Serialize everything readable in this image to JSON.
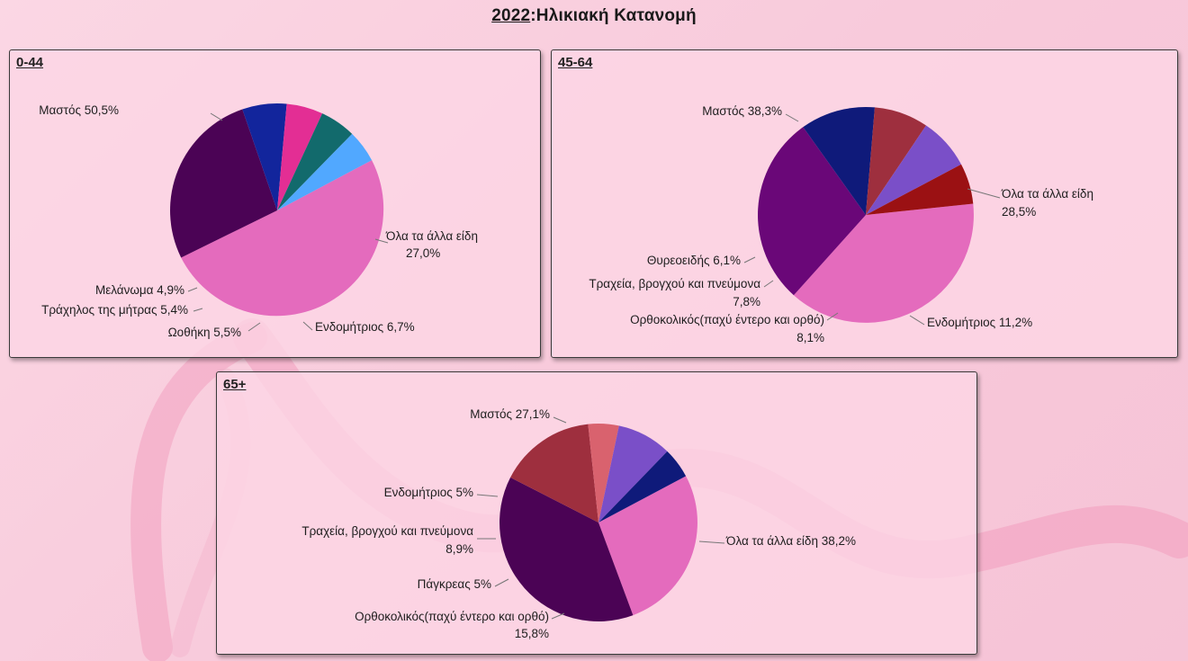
{
  "title": {
    "year": "2022",
    "rest": ":Ηλικιακή Κατανομή"
  },
  "chart_data": [
    {
      "type": "pie",
      "title": "0-44",
      "slices": [
        {
          "label": "Μαστός",
          "value": 50.5,
          "value_text": "50,5%",
          "color": "#e46bbd"
        },
        {
          "label": "Όλα τα άλλα είδη",
          "value": 27.0,
          "value_text": "27,0%",
          "color": "#4b0355"
        },
        {
          "label": "Ενδομήτριος",
          "value": 6.7,
          "value_text": "6,7%",
          "color": "#12259c"
        },
        {
          "label": "Ωοθήκη",
          "value": 5.5,
          "value_text": "5,5%",
          "color": "#e32e94"
        },
        {
          "label": "Τράχηλος της μήτρας",
          "value": 5.4,
          "value_text": "5,4%",
          "color": "#126a6c"
        },
        {
          "label": "Μελάνωμα",
          "value": 4.9,
          "value_text": "4,9%",
          "color": "#51a8ff"
        }
      ]
    },
    {
      "type": "pie",
      "title": "45-64",
      "slices": [
        {
          "label": "Μαστός",
          "value": 38.3,
          "value_text": "38,3%",
          "color": "#e46bbd"
        },
        {
          "label": "Όλα τα άλλα είδη",
          "value": 28.5,
          "value_text": "28,5%",
          "color": "#6a0778"
        },
        {
          "label": "Ενδομήτριος",
          "value": 11.2,
          "value_text": "11,2%",
          "color": "#0f1a7a"
        },
        {
          "label": "Ορθοκολικός(παχύ έντερο και ορθό)",
          "value": 8.1,
          "value_text": "8,1%",
          "color": "#9e2f3e"
        },
        {
          "label": "Τραχεία, βρογχού και πνεύμονα",
          "value": 7.8,
          "value_text": "7,8%",
          "color": "#7a4fc8"
        },
        {
          "label": "Θυρεοειδής",
          "value": 6.1,
          "value_text": "6,1%",
          "color": "#9b1113"
        }
      ]
    },
    {
      "type": "pie",
      "title": "65+",
      "slices": [
        {
          "label": "Μαστός",
          "value": 27.1,
          "value_text": "27,1%",
          "color": "#e46bbd"
        },
        {
          "label": "Όλα τα άλλα είδη",
          "value": 38.2,
          "value_text": "38,2%",
          "color": "#4b0355"
        },
        {
          "label": "Ορθοκολικός(παχύ έντερο και ορθό)",
          "value": 15.8,
          "value_text": "15,8%",
          "color": "#9e2f3e"
        },
        {
          "label": "Πάγκρεας",
          "value": 5,
          "value_text": "5%",
          "color": "#d9626e"
        },
        {
          "label": "Τραχεία, βρογχού και πνεύμονα",
          "value": 8.9,
          "value_text": "8,9%",
          "color": "#7a4fc8"
        },
        {
          "label": "Ενδομήτριος",
          "value": 5,
          "value_text": "5%",
          "color": "#0f1a7a"
        }
      ]
    }
  ]
}
